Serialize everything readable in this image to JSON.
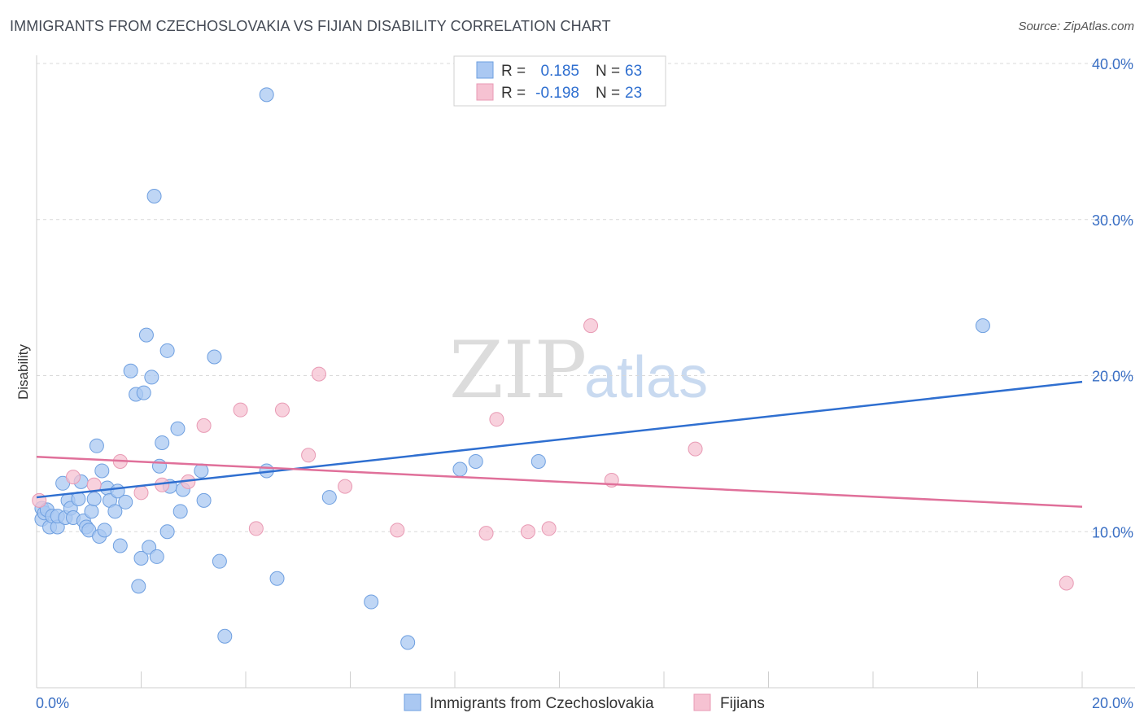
{
  "header": {
    "title": "IMMIGRANTS FROM CZECHOSLOVAKIA VS FIJIAN DISABILITY CORRELATION CHART",
    "source": "Source: ZipAtlas.com"
  },
  "watermark": {
    "zip": "ZIP",
    "atlas": "atlas"
  },
  "colors": {
    "blue_fill": "#aac8f2",
    "blue_stroke": "#6e9fe0",
    "blue_line": "#2f6fd0",
    "pink_fill": "#f6c2d2",
    "pink_stroke": "#e89ab4",
    "pink_line": "#e0709a",
    "grid": "#d9d9d9",
    "axis_label": "#3a6fc4"
  },
  "legend": {
    "r_label": "R =",
    "n_label": "N =",
    "rows": [
      {
        "r": "0.185",
        "n": "63",
        "series": "blue"
      },
      {
        "r": "-0.198",
        "n": "23",
        "series": "pink"
      }
    ]
  },
  "chart_data": {
    "type": "scatter",
    "title": "IMMIGRANTS FROM CZECHOSLOVAKIA VS FIJIAN DISABILITY CORRELATION CHART",
    "xlabel": "",
    "ylabel": "Disability",
    "xlim": [
      0,
      20
    ],
    "ylim": [
      0,
      40
    ],
    "x_tick_labels": [
      "0.0%",
      "20.0%"
    ],
    "y_ticks": [
      10,
      20,
      30,
      40
    ],
    "y_tick_labels": [
      "10.0%",
      "20.0%",
      "30.0%",
      "40.0%"
    ],
    "grid": true,
    "legend_position": "bottom",
    "series": [
      {
        "name": "Immigrants from Czechoslovakia",
        "color": "#aac8f2",
        "trend": {
          "x": [
            0,
            20
          ],
          "y": [
            12.2,
            19.6
          ]
        },
        "points": [
          [
            0.1,
            11.5
          ],
          [
            0.1,
            10.8
          ],
          [
            0.15,
            11.2
          ],
          [
            0.2,
            11.4
          ],
          [
            0.25,
            10.3
          ],
          [
            0.3,
            11.0
          ],
          [
            0.4,
            10.3
          ],
          [
            0.4,
            11.0
          ],
          [
            0.5,
            13.1
          ],
          [
            0.55,
            10.9
          ],
          [
            0.6,
            12.0
          ],
          [
            0.65,
            11.5
          ],
          [
            0.7,
            10.9
          ],
          [
            0.8,
            12.1
          ],
          [
            0.85,
            13.2
          ],
          [
            0.9,
            10.7
          ],
          [
            0.95,
            10.3
          ],
          [
            1.0,
            10.1
          ],
          [
            1.05,
            11.3
          ],
          [
            1.1,
            12.1
          ],
          [
            1.15,
            15.5
          ],
          [
            1.2,
            9.7
          ],
          [
            1.25,
            13.9
          ],
          [
            1.3,
            10.1
          ],
          [
            1.35,
            12.8
          ],
          [
            1.4,
            12.0
          ],
          [
            1.5,
            11.3
          ],
          [
            1.55,
            12.6
          ],
          [
            1.6,
            9.1
          ],
          [
            1.7,
            11.9
          ],
          [
            1.8,
            20.3
          ],
          [
            1.9,
            18.8
          ],
          [
            1.95,
            6.5
          ],
          [
            2.0,
            8.3
          ],
          [
            2.05,
            18.9
          ],
          [
            2.1,
            22.6
          ],
          [
            2.15,
            9.0
          ],
          [
            2.2,
            19.9
          ],
          [
            2.25,
            31.5
          ],
          [
            2.3,
            8.4
          ],
          [
            2.35,
            14.2
          ],
          [
            2.4,
            15.7
          ],
          [
            2.5,
            21.6
          ],
          [
            2.5,
            10.0
          ],
          [
            2.55,
            12.9
          ],
          [
            2.7,
            16.6
          ],
          [
            2.75,
            11.3
          ],
          [
            2.8,
            12.7
          ],
          [
            3.15,
            13.9
          ],
          [
            3.2,
            12.0
          ],
          [
            3.4,
            21.2
          ],
          [
            3.5,
            8.1
          ],
          [
            3.6,
            3.3
          ],
          [
            4.4,
            13.9
          ],
          [
            4.4,
            38.0
          ],
          [
            4.6,
            7.0
          ],
          [
            5.6,
            12.2
          ],
          [
            6.4,
            5.5
          ],
          [
            7.1,
            2.9
          ],
          [
            8.1,
            14.0
          ],
          [
            8.4,
            14.5
          ],
          [
            9.6,
            14.5
          ],
          [
            18.1,
            23.2
          ]
        ]
      },
      {
        "name": "Fijians",
        "color": "#f6c2d2",
        "trend": {
          "x": [
            0,
            20
          ],
          "y": [
            14.8,
            11.6
          ]
        },
        "points": [
          [
            0.05,
            12.0
          ],
          [
            0.7,
            13.5
          ],
          [
            1.1,
            13.0
          ],
          [
            1.6,
            14.5
          ],
          [
            2.0,
            12.5
          ],
          [
            2.4,
            13.0
          ],
          [
            2.9,
            13.2
          ],
          [
            3.2,
            16.8
          ],
          [
            3.9,
            17.8
          ],
          [
            4.2,
            10.2
          ],
          [
            4.7,
            17.8
          ],
          [
            5.2,
            14.9
          ],
          [
            5.4,
            20.1
          ],
          [
            5.9,
            12.9
          ],
          [
            6.9,
            10.1
          ],
          [
            8.6,
            9.9
          ],
          [
            8.8,
            17.2
          ],
          [
            9.4,
            10.0
          ],
          [
            9.8,
            10.2
          ],
          [
            10.6,
            23.2
          ],
          [
            11.0,
            13.3
          ],
          [
            12.6,
            15.3
          ],
          [
            19.7,
            6.7
          ]
        ]
      }
    ]
  }
}
